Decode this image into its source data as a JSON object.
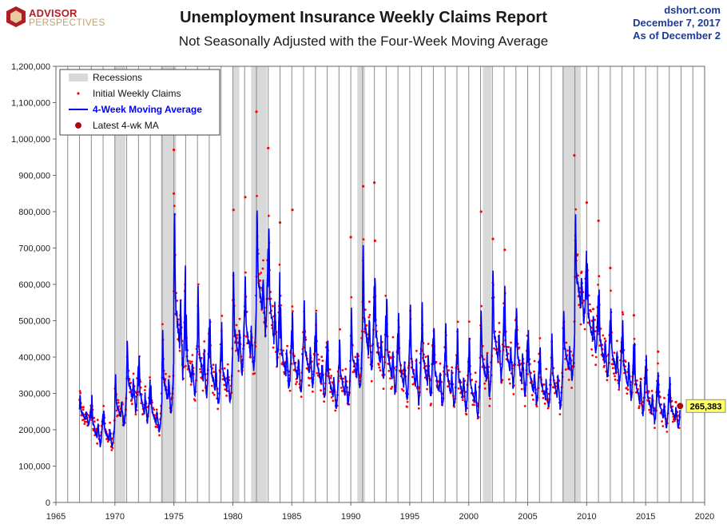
{
  "header": {
    "logo_line1": "ADVISOR",
    "logo_line2": "PERSPECTIVES",
    "source": "dshort.com",
    "date": "December 7, 2017",
    "as_of": "As of December 2"
  },
  "colors": {
    "recession": "#d9d9d9",
    "claims": "#ff0000",
    "moving_average": "#0000ff",
    "latest_marker": "#c00000",
    "label_box": "#ffff66"
  },
  "chart_data": {
    "type": "line",
    "title": "Unemployment Insurance Weekly Claims Report",
    "subtitle": "Not Seasonally Adjusted with the Four-Week Moving Average",
    "xlim": [
      1965,
      2020
    ],
    "ylim": [
      0,
      1200000
    ],
    "x_ticks": [
      1965,
      1970,
      1975,
      1980,
      1985,
      1990,
      1995,
      2000,
      2005,
      2010,
      2015,
      2020
    ],
    "x_tick_labels": [
      "1965",
      "1970",
      "1975",
      "1980",
      "1985",
      "1990",
      "1995",
      "2000",
      "2005",
      "2010",
      "2015",
      "2020"
    ],
    "y_ticks": [
      0,
      100000,
      200000,
      300000,
      400000,
      500000,
      600000,
      700000,
      800000,
      900000,
      1000000,
      1100000,
      1200000
    ],
    "y_tick_labels": [
      "0",
      "100,000",
      "200,000",
      "300,000",
      "400,000",
      "500,000",
      "600,000",
      "700,000",
      "800,000",
      "900,000",
      "1,000,000",
      "1,100,000",
      "1,200,000"
    ],
    "grid": "vertical at each year",
    "legend": {
      "placement": "top-left",
      "entries": [
        "Recessions",
        "Initial Weekly Claims",
        "4-Week Moving Average",
        "Latest 4-wk MA"
      ]
    },
    "recessions": [
      [
        1969.95,
        1970.9
      ],
      [
        1973.9,
        1975.2
      ],
      [
        1980.0,
        1980.55
      ],
      [
        1981.55,
        1982.9
      ],
      [
        1990.55,
        1991.2
      ],
      [
        2001.2,
        2001.9
      ],
      [
        2007.95,
        2009.5
      ]
    ],
    "moving_average_annual": {
      "series_name": "4-Week Moving Average",
      "x": [
        1967,
        1968,
        1969,
        1970,
        1971,
        1972,
        1973,
        1974,
        1975,
        1976,
        1977,
        1978,
        1979,
        1980,
        1981,
        1982,
        1983,
        1984,
        1985,
        1986,
        1987,
        1988,
        1989,
        1990,
        1991,
        1992,
        1993,
        1994,
        1995,
        1996,
        1997,
        1998,
        1999,
        2000,
        2001,
        2002,
        2003,
        2004,
        2005,
        2006,
        2007,
        2008,
        2009,
        2010,
        2011,
        2012,
        2013,
        2014,
        2015,
        2016,
        2017
      ],
      "trough": [
        210000,
        150000,
        150000,
        200000,
        240000,
        210000,
        190000,
        230000,
        330000,
        280000,
        270000,
        250000,
        260000,
        330000,
        350000,
        450000,
        360000,
        300000,
        290000,
        300000,
        270000,
        250000,
        260000,
        300000,
        340000,
        320000,
        280000,
        270000,
        260000,
        270000,
        250000,
        250000,
        240000,
        220000,
        280000,
        320000,
        300000,
        280000,
        260000,
        250000,
        250000,
        330000,
        480000,
        390000,
        330000,
        310000,
        270000,
        230000,
        210000,
        200000,
        195000
      ],
      "peak": [
        300000,
        300000,
        260000,
        360000,
        460000,
        410000,
        330000,
        480000,
        830000,
        530000,
        610000,
        530000,
        500000,
        660000,
        640000,
        830000,
        790000,
        560000,
        540000,
        570000,
        530000,
        450000,
        460000,
        540000,
        720000,
        640000,
        580000,
        530000,
        560000,
        560000,
        500000,
        500000,
        490000,
        470000,
        550000,
        660000,
        600000,
        560000,
        480000,
        440000,
        470000,
        540000,
        800000,
        680000,
        590000,
        550000,
        520000,
        460000,
        410000,
        370000,
        350000
      ]
    },
    "claims_outliers": {
      "series_name": "Initial Weekly Claims",
      "points": [
        [
          1975.0,
          970000
        ],
        [
          1975.0,
          850000
        ],
        [
          1980.05,
          805000
        ],
        [
          1981.05,
          840000
        ],
        [
          1982.0,
          1075000
        ],
        [
          1983.0,
          975000
        ],
        [
          1984.0,
          770000
        ],
        [
          1985.05,
          805000
        ],
        [
          1990.0,
          730000
        ],
        [
          1991.05,
          870000
        ],
        [
          1992.0,
          880000
        ],
        [
          1992.05,
          720000
        ],
        [
          2001.05,
          800000
        ],
        [
          2002.05,
          725000
        ],
        [
          2003.05,
          695000
        ],
        [
          2008.95,
          955000
        ],
        [
          2009.05,
          720000
        ],
        [
          2010.0,
          825000
        ],
        [
          2011.0,
          775000
        ],
        [
          2012.0,
          645000
        ],
        [
          2014.0,
          515000
        ],
        [
          2016.05,
          415000
        ]
      ]
    },
    "latest": {
      "label": "Latest 4-wk MA",
      "x": 2017.92,
      "value": 265383,
      "value_label": "265,383"
    }
  }
}
